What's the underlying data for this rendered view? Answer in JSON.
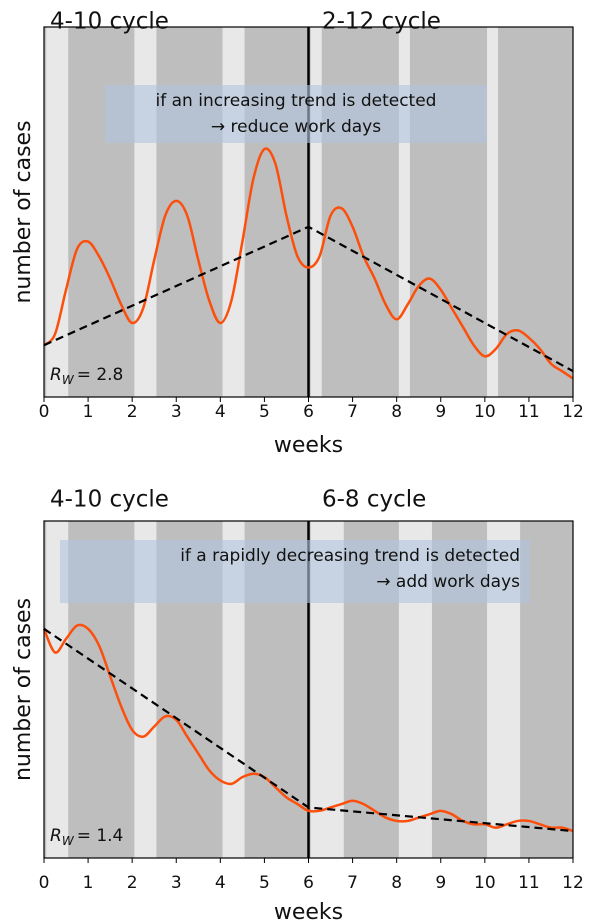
{
  "chart_data": [
    {
      "type": "line",
      "left_title": "4-10 cycle",
      "right_title": "2-12 cycle",
      "xlabel": "weeks",
      "ylabel": "number of cases",
      "annotation": [
        "if an increasing trend is detected",
        "→ reduce work days"
      ],
      "annotation_align": "center",
      "rw_symbol": "R",
      "rw_subscript": "W",
      "rw_text": "= 2.8",
      "switch_week": 6,
      "light_bands": [
        [
          0.05,
          0.55
        ],
        [
          2.05,
          2.55
        ],
        [
          4.05,
          4.55
        ],
        [
          6.05,
          6.3
        ],
        [
          8.05,
          8.3
        ],
        [
          10.05,
          10.3
        ]
      ],
      "xlim": [
        0,
        12
      ],
      "ylim": [
        0,
        100
      ],
      "xticks": [
        0,
        1,
        2,
        3,
        4,
        5,
        6,
        7,
        8,
        9,
        10,
        11,
        12
      ],
      "series": [
        {
          "name": "cases",
          "color": "#fc4f0c",
          "style": "solid",
          "x": [
            0,
            0.25,
            0.5,
            0.75,
            1,
            1.25,
            1.5,
            1.75,
            2,
            2.25,
            2.5,
            2.75,
            3,
            3.25,
            3.5,
            3.75,
            4,
            4.25,
            4.5,
            4.75,
            5,
            5.25,
            5.5,
            5.75,
            6,
            6.25,
            6.5,
            6.75,
            7,
            7.25,
            7.5,
            7.75,
            8,
            8.25,
            8.5,
            8.75,
            9,
            9.25,
            9.5,
            9.75,
            10,
            10.25,
            10.5,
            10.75,
            11,
            11.25,
            11.5,
            11.75,
            12
          ],
          "values": [
            14,
            17,
            29,
            40,
            42,
            38,
            32,
            25,
            20,
            24,
            37,
            49,
            53,
            49,
            37,
            26,
            20,
            26,
            42,
            59,
            67,
            63,
            49,
            38,
            35,
            38,
            49,
            51,
            46,
            38,
            32,
            25,
            21,
            25,
            30,
            32,
            29,
            24,
            19,
            14,
            11,
            13,
            17,
            18,
            16,
            13,
            9,
            7,
            5
          ]
        },
        {
          "name": "trend",
          "color": "#000000",
          "style": "dashed",
          "x": [
            0,
            6,
            12
          ],
          "values": [
            14,
            46,
            7
          ]
        }
      ]
    },
    {
      "type": "line",
      "left_title": "4-10 cycle",
      "right_title": "6-8 cycle",
      "xlabel": "weeks",
      "ylabel": "number of cases",
      "annotation": [
        "if a rapidly decreasing trend is detected",
        "→ add work days"
      ],
      "annotation_align": "right",
      "rw_symbol": "R",
      "rw_subscript": "W",
      "rw_text": "= 1.4",
      "switch_week": 6,
      "light_bands": [
        [
          0.05,
          0.55
        ],
        [
          2.05,
          2.55
        ],
        [
          4.05,
          4.55
        ],
        [
          6.05,
          6.8
        ],
        [
          8.05,
          8.8
        ],
        [
          10.05,
          10.8
        ]
      ],
      "xlim": [
        0,
        12
      ],
      "ylim": [
        0,
        100
      ],
      "xticks": [
        0,
        1,
        2,
        3,
        4,
        5,
        6,
        7,
        8,
        9,
        10,
        11,
        12
      ],
      "series": [
        {
          "name": "cases",
          "color": "#fc4f0c",
          "style": "solid",
          "x": [
            0,
            0.25,
            0.5,
            0.75,
            1,
            1.25,
            1.5,
            1.75,
            2,
            2.25,
            2.5,
            2.75,
            3,
            3.25,
            3.5,
            3.75,
            4,
            4.25,
            4.5,
            4.75,
            5,
            5.25,
            5.5,
            5.75,
            6,
            6.25,
            6.5,
            6.75,
            7,
            7.25,
            7.5,
            7.75,
            8,
            8.25,
            8.5,
            8.75,
            9,
            9.25,
            9.5,
            9.75,
            10,
            10.25,
            10.5,
            10.75,
            11,
            11.25,
            11.5,
            11.75,
            12
          ],
          "values": [
            68,
            61,
            65,
            69,
            68,
            63,
            54,
            45,
            38,
            36,
            39,
            42,
            41,
            36,
            31,
            26,
            23,
            22,
            24,
            25,
            24,
            21,
            18,
            16,
            14,
            14,
            15,
            16,
            17,
            16,
            14,
            12,
            11,
            11,
            12,
            13,
            14,
            13,
            11,
            10,
            10,
            9,
            10,
            11,
            11,
            10,
            9,
            9,
            8
          ]
        },
        {
          "name": "trend",
          "color": "#000000",
          "style": "dashed",
          "x": [
            0,
            6,
            12
          ],
          "values": [
            68,
            15,
            8
          ]
        }
      ]
    }
  ]
}
